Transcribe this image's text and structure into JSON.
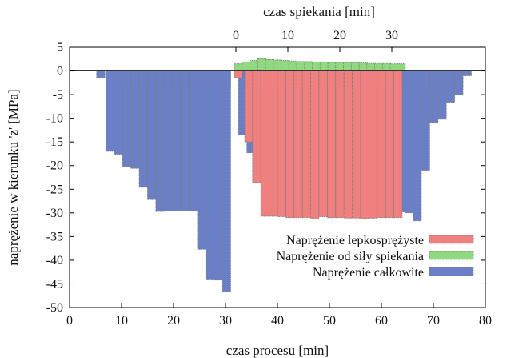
{
  "chart_data": {
    "type": "bar",
    "title": "",
    "xlabel": "czas procesu [min]",
    "x2label": "czas spiekania [min]",
    "ylabel": "naprężenie w kierunku 'z' [MPa]",
    "xlim": [
      0,
      80
    ],
    "ylim": [
      -50,
      5
    ],
    "x2_offset": 32,
    "xticks": [
      0,
      10,
      20,
      30,
      40,
      50,
      60,
      70,
      80
    ],
    "x2ticks": [
      0,
      10,
      20,
      30
    ],
    "yticks": [
      5,
      0,
      -5,
      -10,
      -15,
      -20,
      -25,
      -30,
      -35,
      -40,
      -45,
      -50
    ],
    "bar_width": 1.6,
    "legend_position": "bottom-right",
    "colors": {
      "lepko": "#f08080",
      "spiek": "#90d980",
      "calk": "#6b7fc6",
      "edge": "#7a7a7a"
    },
    "series": [
      {
        "name": "Naprężenie lepkosprężyste",
        "key": "lepko",
        "points": [
          [
            32.5,
            -1.5
          ],
          [
            34.5,
            -15.0
          ],
          [
            36.0,
            -23.6
          ],
          [
            37.6,
            -30.7
          ],
          [
            39.2,
            -30.7
          ],
          [
            40.8,
            -30.8
          ],
          [
            42.4,
            -31.0
          ],
          [
            44.0,
            -31.0
          ],
          [
            45.6,
            -31.0
          ],
          [
            47.2,
            -31.3
          ],
          [
            48.8,
            -30.8
          ],
          [
            50.4,
            -31.0
          ],
          [
            52.0,
            -31.0
          ],
          [
            53.6,
            -31.1
          ],
          [
            55.2,
            -31.1
          ],
          [
            56.8,
            -31.2
          ],
          [
            58.4,
            -31.1
          ],
          [
            60.0,
            -31.0
          ],
          [
            61.6,
            -31.0
          ],
          [
            63.2,
            -31.0
          ]
        ]
      },
      {
        "name": "Naprężenie od siły spiekania",
        "key": "spiek",
        "points": [
          [
            32.5,
            1.5
          ],
          [
            34.0,
            1.9
          ],
          [
            35.5,
            2.2
          ],
          [
            37.0,
            2.6
          ],
          [
            38.5,
            2.4
          ],
          [
            40.0,
            2.3
          ],
          [
            41.5,
            2.2
          ],
          [
            43.0,
            2.1
          ],
          [
            44.5,
            2.0
          ],
          [
            46.0,
            2.0
          ],
          [
            47.5,
            1.9
          ],
          [
            49.0,
            1.9
          ],
          [
            50.5,
            1.8
          ],
          [
            52.0,
            1.8
          ],
          [
            53.5,
            1.8
          ],
          [
            55.0,
            1.7
          ],
          [
            56.5,
            1.7
          ],
          [
            58.0,
            1.6
          ],
          [
            59.5,
            1.6
          ],
          [
            61.0,
            1.6
          ],
          [
            62.5,
            1.5
          ],
          [
            63.8,
            1.5
          ]
        ]
      },
      {
        "name": "Naprężenie całkowite",
        "key": "calk",
        "points": [
          [
            6.0,
            -1.5
          ],
          [
            7.8,
            -17.0
          ],
          [
            9.4,
            -17.6
          ],
          [
            11.0,
            -20.2
          ],
          [
            12.6,
            -20.6
          ],
          [
            14.2,
            -24.6
          ],
          [
            15.8,
            -27.2
          ],
          [
            17.4,
            -29.7
          ],
          [
            19.0,
            -29.6
          ],
          [
            20.6,
            -29.6
          ],
          [
            22.2,
            -29.5
          ],
          [
            23.8,
            -29.6
          ],
          [
            25.4,
            -37.7
          ],
          [
            27.0,
            -44.0
          ],
          [
            28.6,
            -44.2
          ],
          [
            30.2,
            -46.6
          ],
          [
            33.3,
            -13.5
          ],
          [
            34.9,
            -17.3
          ],
          [
            36.5,
            -21.4
          ],
          [
            38.1,
            -28.4
          ],
          [
            39.7,
            -28.6
          ],
          [
            41.3,
            -28.8
          ],
          [
            42.9,
            -28.9
          ],
          [
            44.5,
            -29.0
          ],
          [
            46.1,
            -29.2
          ],
          [
            47.7,
            -29.3
          ],
          [
            49.3,
            -29.2
          ],
          [
            50.9,
            -29.4
          ],
          [
            52.5,
            -29.4
          ],
          [
            54.1,
            -29.5
          ],
          [
            55.7,
            -29.5
          ],
          [
            57.3,
            -29.6
          ],
          [
            58.9,
            -29.6
          ],
          [
            60.5,
            -29.7
          ],
          [
            62.1,
            -29.7
          ],
          [
            63.7,
            -29.8
          ],
          [
            65.3,
            -30.0
          ],
          [
            66.9,
            -31.7
          ],
          [
            68.5,
            -21.0
          ],
          [
            70.1,
            -11.0
          ],
          [
            71.7,
            -10.2
          ],
          [
            73.3,
            -6.6
          ],
          [
            74.9,
            -5.0
          ],
          [
            76.5,
            -1.0
          ]
        ]
      }
    ]
  }
}
